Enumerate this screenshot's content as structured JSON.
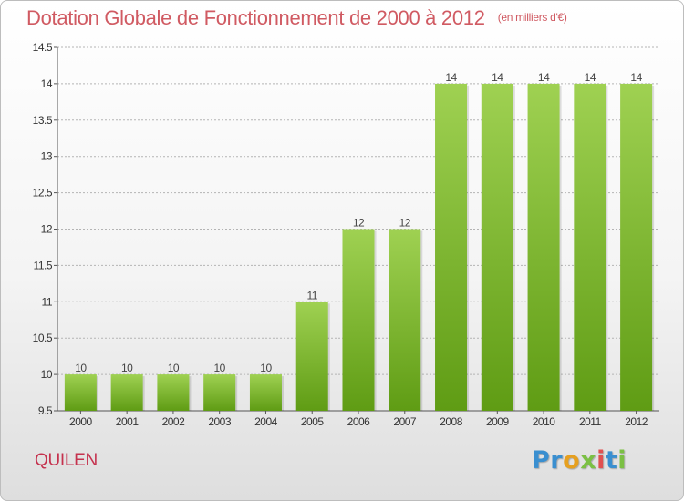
{
  "title": "Dotation Globale de Fonctionnement de 2000 à 2012",
  "subtitle": "(en milliers d'€)",
  "commune": "QUILEN",
  "logo_text": "Proxiti",
  "colors": {
    "title": "#d05a62",
    "bar_top": "#9fd152",
    "bar_bottom": "#5f9c14",
    "grid": "#b4b4b4",
    "commune": "#c5324e"
  },
  "chart_data": {
    "type": "bar",
    "categories": [
      "2000",
      "2001",
      "2002",
      "2003",
      "2004",
      "2005",
      "2006",
      "2007",
      "2008",
      "2009",
      "2010",
      "2011",
      "2012"
    ],
    "values": [
      10,
      10,
      10,
      10,
      10,
      11,
      12,
      12,
      14,
      14,
      14,
      14,
      14
    ],
    "data_labels": [
      "10",
      "10",
      "10",
      "10",
      "10",
      "11",
      "12",
      "12",
      "14",
      "14",
      "14",
      "14",
      "14"
    ],
    "ylim": [
      9.5,
      14.5
    ],
    "yticks": [
      9.5,
      10,
      10.5,
      11,
      11.5,
      12,
      12.5,
      13,
      13.5,
      14,
      14.5
    ],
    "ytick_labels": [
      "9.5",
      "10",
      "10.5",
      "11",
      "11.5",
      "12",
      "12.5",
      "13",
      "13.5",
      "14",
      "14.5"
    ],
    "grid": true,
    "legend": false
  }
}
